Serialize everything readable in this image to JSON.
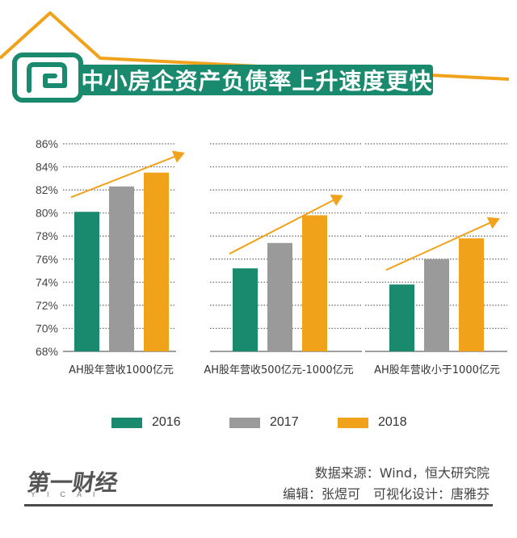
{
  "title": "中小房企资产负债率上升速度更快",
  "colors": {
    "brand_green": "#1a8a6e",
    "roof_orange": "#f0a21b",
    "series_2016": "#1a8a6e",
    "series_2017": "#9a9a9a",
    "series_2018": "#f0a21b",
    "trend_arrow": "#f0a21b"
  },
  "icons": {
    "banner": "house-icon"
  },
  "chart_data": {
    "type": "bar",
    "categories": [
      "AH股年营收1000亿元",
      "AH股年营收500亿元-1000亿元",
      "AH股年营收小于1000亿元"
    ],
    "series": [
      {
        "name": "2016",
        "values": [
          80.1,
          75.2,
          73.8
        ]
      },
      {
        "name": "2017",
        "values": [
          82.3,
          77.4,
          76.0
        ]
      },
      {
        "name": "2018",
        "values": [
          83.5,
          79.8,
          77.8
        ]
      }
    ],
    "ylim": [
      68,
      86
    ],
    "yticks": [
      "68%",
      "70%",
      "72%",
      "74%",
      "76%",
      "78%",
      "80%",
      "82%",
      "84%",
      "86%"
    ],
    "grid": true,
    "legend_position": "bottom",
    "annotations": "upward trend arrow above each group"
  },
  "legend": [
    {
      "label": "2016"
    },
    {
      "label": "2017"
    },
    {
      "label": "2018"
    }
  ],
  "footer": {
    "logo": "第一财经",
    "logo_sub": "YICAI",
    "source": "数据来源：Wind，恒大研究院",
    "editor": "编辑：张煜可　可视化设计：唐雅芬"
  }
}
